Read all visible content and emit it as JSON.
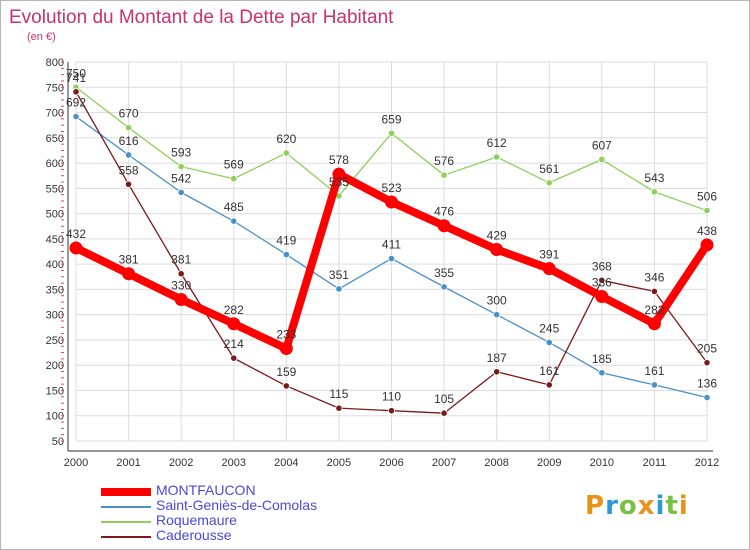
{
  "title": "Evolution du Montant de la Dette par Habitant",
  "subtitle": "(en €)",
  "chart_data": {
    "type": "line",
    "title": "Evolution du Montant de la Dette par Habitant",
    "ylabel": "(en €)",
    "x": [
      "2000",
      "2001",
      "2002",
      "2003",
      "2004",
      "2005",
      "2006",
      "2007",
      "2008",
      "2009",
      "2010",
      "2011",
      "2012"
    ],
    "ylim": [
      50,
      800
    ],
    "yticks": [
      50,
      100,
      150,
      200,
      250,
      300,
      350,
      400,
      450,
      500,
      550,
      600,
      650,
      700,
      750,
      800
    ],
    "grid": "horizontal",
    "legend": "bottom-left",
    "series": [
      {
        "name": "MONTFAUCON",
        "color": "#ff0000",
        "values": [
          432,
          381,
          330,
          282,
          233,
          578,
          523,
          476,
          429,
          391,
          336,
          282,
          438
        ]
      },
      {
        "name": "Saint-Geniès-de-Comolas",
        "color": "#4a90c8",
        "values": [
          692,
          616,
          542,
          485,
          419,
          351,
          411,
          355,
          300,
          245,
          185,
          161,
          136
        ]
      },
      {
        "name": "Roquemaure",
        "color": "#8ed05a",
        "values": [
          750,
          670,
          593,
          569,
          620,
          535,
          659,
          576,
          612,
          561,
          607,
          543,
          506
        ]
      },
      {
        "name": "Caderousse",
        "color": "#7a1a1a",
        "values": [
          741,
          558,
          381,
          214,
          159,
          115,
          110,
          105,
          187,
          161,
          368,
          346,
          205
        ]
      }
    ]
  },
  "logo": {
    "letters": [
      "P",
      "r",
      "o",
      "x",
      "i",
      "t",
      "i"
    ],
    "colors": [
      "#e8931a",
      "#2a9bd8",
      "#7ac143",
      "#e8931a",
      "#2a9bd8",
      "#7ac143",
      "#e8931a"
    ]
  }
}
